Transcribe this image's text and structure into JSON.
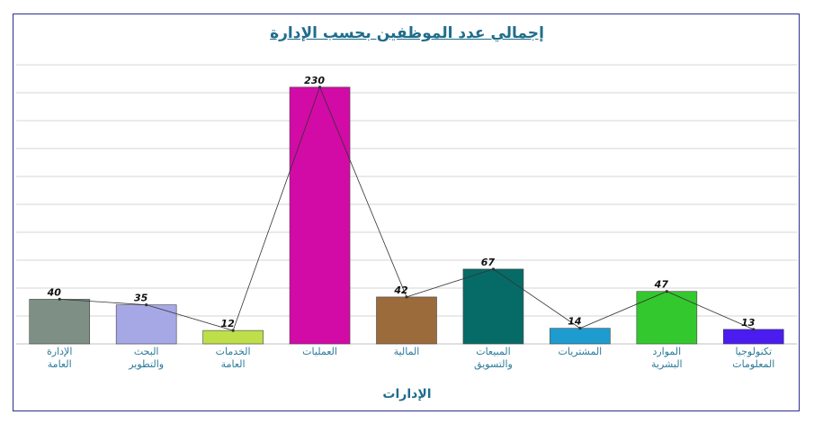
{
  "chart_data": {
    "type": "bar",
    "title": "إجمالي عدد الموظفين بحسب الإدارة",
    "xlabel": "الإدارات",
    "ylabel": "",
    "ylim": [
      0,
      250
    ],
    "grid": true,
    "legend": "none",
    "overlay_line": true,
    "categories": [
      "الإدارة العامة",
      "البحث والتطوير",
      "الخدمات العامة",
      "العمليات",
      "المالية",
      "المبيعات والتسويق",
      "المشتريات",
      "الموارد البشرية",
      "تكنولوجيا المعلومات"
    ],
    "values": [
      40,
      35,
      12,
      230,
      42,
      67,
      14,
      47,
      13
    ],
    "colors": [
      "#7e9086",
      "#a6a8e6",
      "#bedf4a",
      "#d20aa6",
      "#9b6b3c",
      "#066b67",
      "#1e9ccf",
      "#33c82e",
      "#4a1cf0"
    ]
  }
}
